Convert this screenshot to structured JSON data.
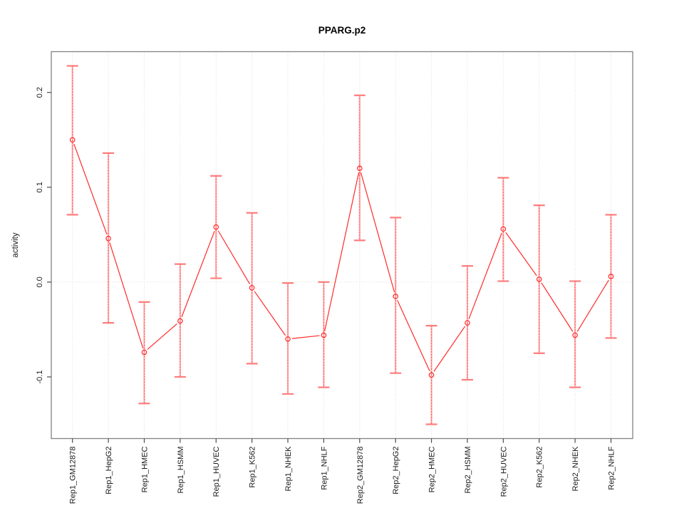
{
  "window_title": "PPARG.p2",
  "chart_data": {
    "type": "line",
    "title": "PPARG.p2",
    "xlabel": "",
    "ylabel": "activity",
    "legend": "none",
    "categories": [
      "Rep1_GM12878",
      "Rep1_HepG2",
      "Rep1_HMEC",
      "Rep1_HSMM",
      "Rep1_HUVEC",
      "Rep1_K562",
      "Rep1_NHEK",
      "Rep1_NHLF",
      "Rep2_GM12878",
      "Rep2_HepG2",
      "Rep2_HMEC",
      "Rep2_HSMM",
      "Rep2_HUVEC",
      "Rep2_K562",
      "Rep2_NHEK",
      "Rep2_NHLF"
    ],
    "series": [
      {
        "name": "activity",
        "marker": "open-circle",
        "values": [
          0.15,
          0.046,
          -0.074,
          -0.041,
          0.058,
          -0.006,
          -0.06,
          -0.056,
          0.12,
          -0.015,
          -0.098,
          -0.043,
          0.056,
          0.003,
          -0.056,
          0.006
        ],
        "error_lower": [
          0.071,
          -0.043,
          -0.128,
          -0.1,
          0.004,
          -0.086,
          -0.118,
          -0.111,
          0.044,
          -0.096,
          -0.15,
          -0.103,
          0.001,
          -0.075,
          -0.111,
          -0.059
        ],
        "error_upper": [
          0.228,
          0.136,
          -0.021,
          0.019,
          0.112,
          0.073,
          -0.001,
          0.0,
          0.197,
          0.068,
          -0.046,
          0.017,
          0.11,
          0.081,
          0.001,
          0.071
        ]
      }
    ],
    "yticks": {
      "values": [
        -0.1,
        0.0,
        0.1,
        0.2
      ],
      "labels": [
        "-0.1",
        "0.0",
        "0.1",
        "0.2"
      ]
    },
    "ylim": [
      -0.165,
      0.243
    ],
    "grid": {
      "vertical_dotted_per_category": true,
      "horizontal_dotted_at_zero": true
    },
    "colors": {
      "series_line": "#ff2b2b",
      "error_bar": "#ff9191",
      "error_bar_cap": "#ff7d7d",
      "error_bar_dash": "#ff4040",
      "grid": "#d9d9d9",
      "axis_box": "#828282",
      "tick": "#4a4a4a",
      "tick_text": "#1a1a1a",
      "title": "#000000",
      "background": "#ffffff"
    }
  }
}
